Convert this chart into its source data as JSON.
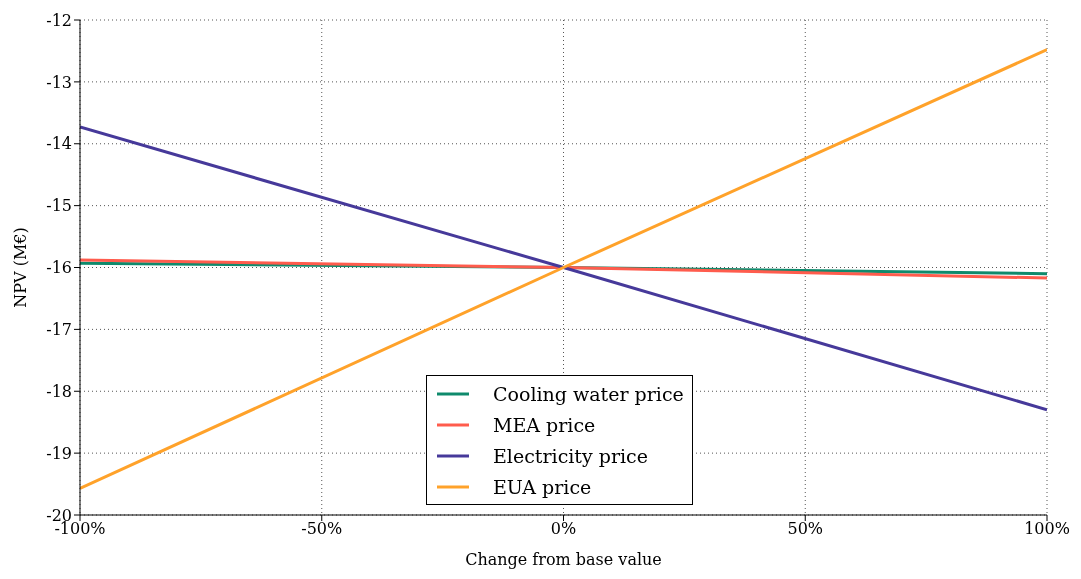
{
  "chart_data": {
    "type": "line",
    "xlabel": "Change from base value",
    "ylabel": "NPV (M€)",
    "x": [
      -100,
      0,
      100
    ],
    "series": [
      {
        "name": "Cooling water price",
        "color": "#0f8a6c",
        "values": [
          -15.93,
          -16,
          -16.1
        ]
      },
      {
        "name": "MEA price",
        "color": "#ff5c4d",
        "values": [
          -15.88,
          -16,
          -16.17
        ]
      },
      {
        "name": "Electricity price",
        "color": "#46399a",
        "values": [
          -13.73,
          -16,
          -18.3
        ]
      },
      {
        "name": "EUA price",
        "color": "#ffa22a",
        "values": [
          -19.57,
          -16,
          -12.48
        ]
      }
    ],
    "xlim": [
      -100,
      100
    ],
    "xticks": [
      {
        "value": -100,
        "label": "-100%"
      },
      {
        "value": -50,
        "label": "-50%"
      },
      {
        "value": 0,
        "label": "0%"
      },
      {
        "value": 50,
        "label": "50%"
      },
      {
        "value": 100,
        "label": "100%"
      }
    ],
    "ylim": [
      -20,
      -12
    ],
    "yticks": [
      -20,
      -19,
      -18,
      -17,
      -16,
      -15,
      -14,
      -13,
      -12
    ],
    "grid": true,
    "legend": "bottom",
    "marker": "none",
    "line_style": "solid"
  }
}
